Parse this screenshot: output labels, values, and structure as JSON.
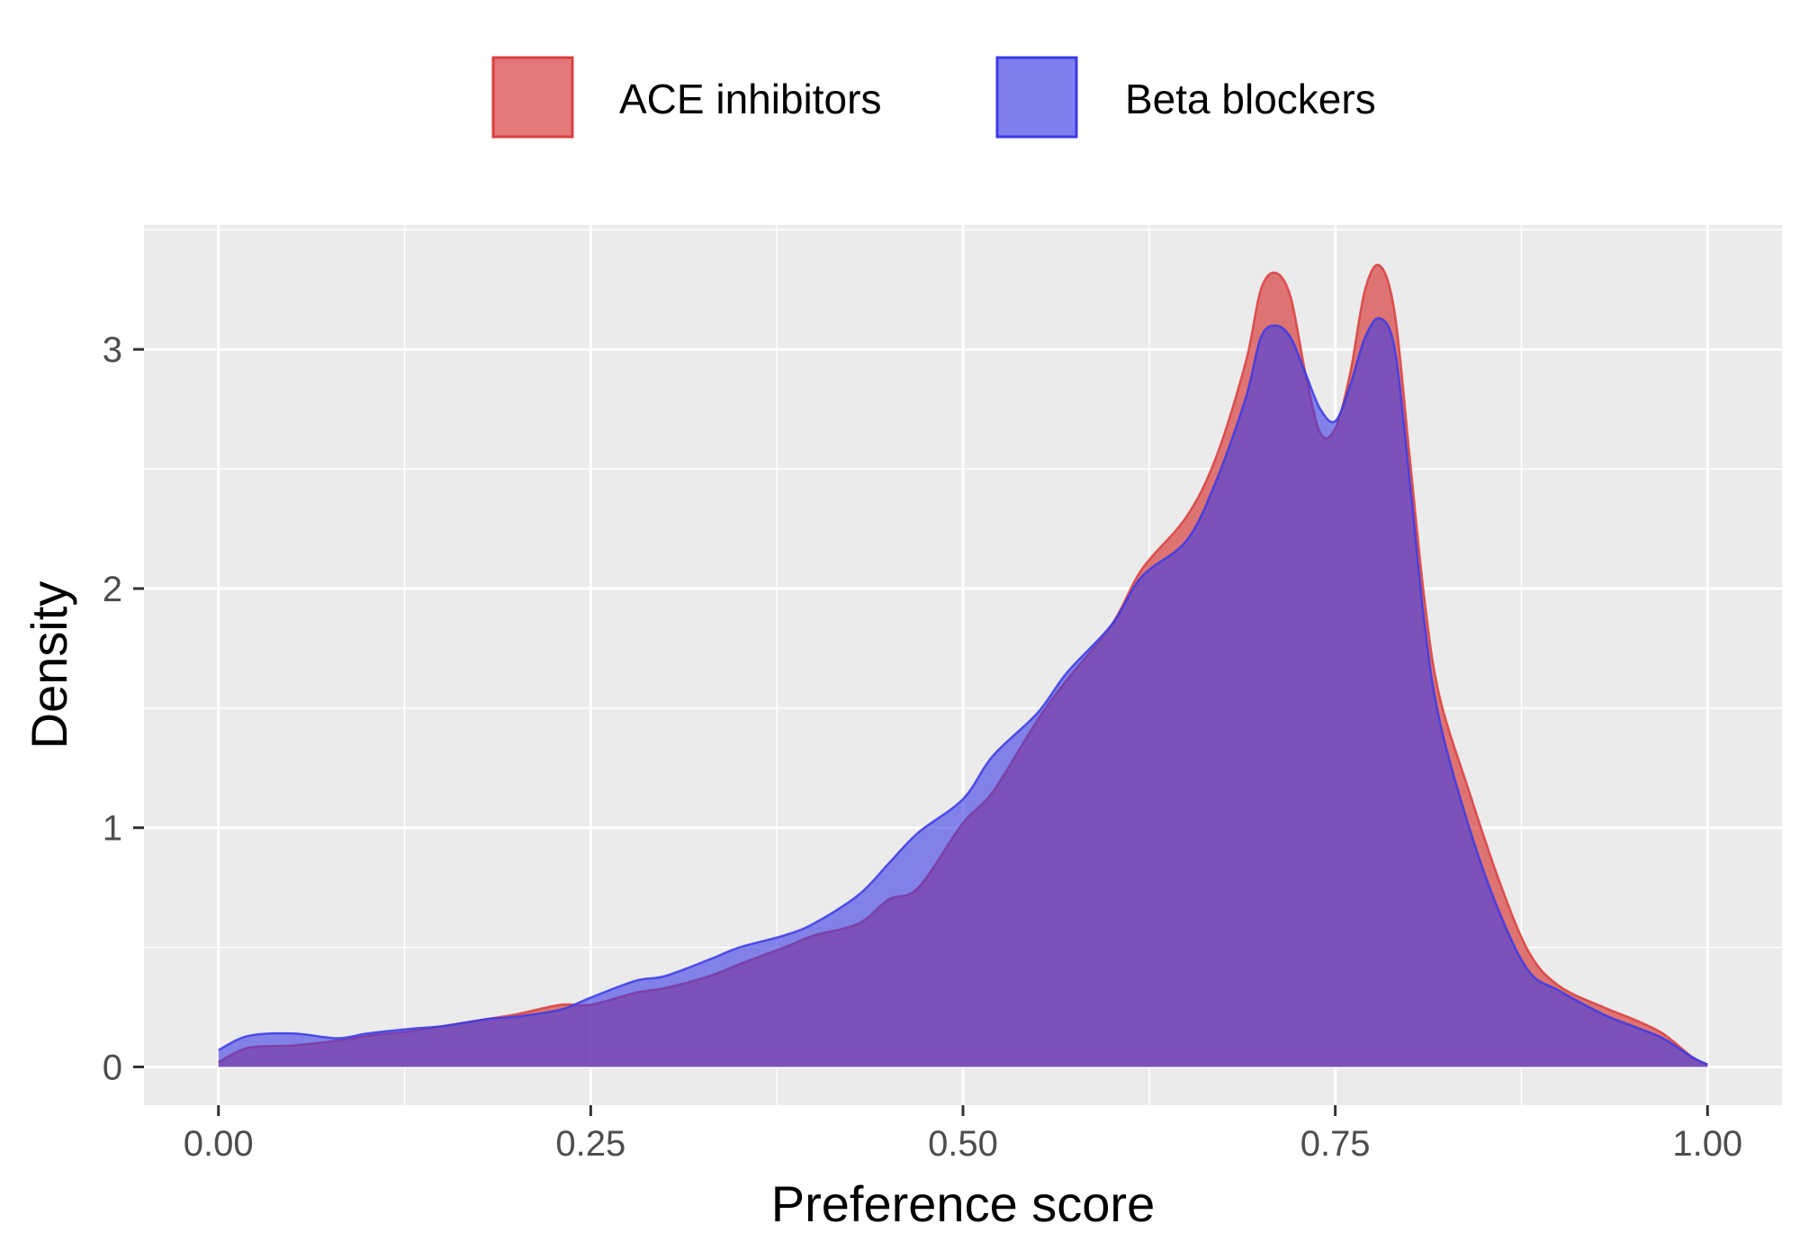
{
  "colors": {
    "ace": "#d94040",
    "beta": "#3b3be6",
    "panel": "#ebebeb",
    "grid": "#ffffff"
  },
  "chart_data": {
    "type": "area",
    "title": "",
    "xlabel": "Preference score",
    "ylabel": "Density",
    "xlim": [
      -0.05,
      1.05
    ],
    "ylim": [
      -0.16,
      3.52
    ],
    "grid": true,
    "legend_position": "top",
    "x_ticks": [
      0.0,
      0.25,
      0.5,
      0.75,
      1.0
    ],
    "x_tick_labels": [
      "0.00",
      "0.25",
      "0.50",
      "0.75",
      "1.00"
    ],
    "y_ticks": [
      0,
      1,
      2,
      3
    ],
    "y_tick_labels": [
      "0",
      "1",
      "2",
      "3"
    ],
    "series": [
      {
        "name": "ACE inhibitors",
        "color": "#d94040",
        "points": [
          [
            0.0,
            0.02
          ],
          [
            0.02,
            0.08
          ],
          [
            0.05,
            0.09
          ],
          [
            0.08,
            0.11
          ],
          [
            0.1,
            0.13
          ],
          [
            0.13,
            0.15
          ],
          [
            0.15,
            0.17
          ],
          [
            0.18,
            0.2
          ],
          [
            0.2,
            0.22
          ],
          [
            0.23,
            0.26
          ],
          [
            0.25,
            0.26
          ],
          [
            0.28,
            0.31
          ],
          [
            0.3,
            0.33
          ],
          [
            0.33,
            0.38
          ],
          [
            0.35,
            0.43
          ],
          [
            0.38,
            0.5
          ],
          [
            0.4,
            0.55
          ],
          [
            0.43,
            0.6
          ],
          [
            0.45,
            0.7
          ],
          [
            0.47,
            0.75
          ],
          [
            0.5,
            1.02
          ],
          [
            0.52,
            1.15
          ],
          [
            0.55,
            1.45
          ],
          [
            0.57,
            1.62
          ],
          [
            0.6,
            1.85
          ],
          [
            0.62,
            2.08
          ],
          [
            0.65,
            2.3
          ],
          [
            0.67,
            2.55
          ],
          [
            0.69,
            2.95
          ],
          [
            0.7,
            3.25
          ],
          [
            0.71,
            3.32
          ],
          [
            0.72,
            3.22
          ],
          [
            0.73,
            2.9
          ],
          [
            0.74,
            2.65
          ],
          [
            0.75,
            2.67
          ],
          [
            0.76,
            2.9
          ],
          [
            0.77,
            3.25
          ],
          [
            0.78,
            3.35
          ],
          [
            0.79,
            3.15
          ],
          [
            0.8,
            2.55
          ],
          [
            0.81,
            1.95
          ],
          [
            0.82,
            1.55
          ],
          [
            0.84,
            1.15
          ],
          [
            0.86,
            0.78
          ],
          [
            0.88,
            0.48
          ],
          [
            0.9,
            0.34
          ],
          [
            0.93,
            0.25
          ],
          [
            0.95,
            0.2
          ],
          [
            0.97,
            0.14
          ],
          [
            0.99,
            0.04
          ],
          [
            1.0,
            0.01
          ]
        ]
      },
      {
        "name": "Beta blockers",
        "color": "#3b3be6",
        "points": [
          [
            0.0,
            0.07
          ],
          [
            0.02,
            0.13
          ],
          [
            0.05,
            0.14
          ],
          [
            0.08,
            0.12
          ],
          [
            0.1,
            0.14
          ],
          [
            0.13,
            0.16
          ],
          [
            0.15,
            0.17
          ],
          [
            0.18,
            0.2
          ],
          [
            0.2,
            0.21
          ],
          [
            0.23,
            0.24
          ],
          [
            0.25,
            0.29
          ],
          [
            0.28,
            0.36
          ],
          [
            0.3,
            0.38
          ],
          [
            0.33,
            0.45
          ],
          [
            0.35,
            0.5
          ],
          [
            0.38,
            0.55
          ],
          [
            0.4,
            0.6
          ],
          [
            0.43,
            0.72
          ],
          [
            0.45,
            0.85
          ],
          [
            0.47,
            0.98
          ],
          [
            0.5,
            1.12
          ],
          [
            0.52,
            1.3
          ],
          [
            0.55,
            1.48
          ],
          [
            0.57,
            1.65
          ],
          [
            0.6,
            1.85
          ],
          [
            0.62,
            2.05
          ],
          [
            0.65,
            2.2
          ],
          [
            0.67,
            2.45
          ],
          [
            0.69,
            2.8
          ],
          [
            0.7,
            3.05
          ],
          [
            0.71,
            3.1
          ],
          [
            0.72,
            3.05
          ],
          [
            0.73,
            2.9
          ],
          [
            0.74,
            2.75
          ],
          [
            0.75,
            2.7
          ],
          [
            0.76,
            2.85
          ],
          [
            0.77,
            3.05
          ],
          [
            0.78,
            3.13
          ],
          [
            0.79,
            3.0
          ],
          [
            0.8,
            2.45
          ],
          [
            0.81,
            1.85
          ],
          [
            0.82,
            1.45
          ],
          [
            0.84,
            1.0
          ],
          [
            0.86,
            0.65
          ],
          [
            0.88,
            0.4
          ],
          [
            0.9,
            0.32
          ],
          [
            0.93,
            0.22
          ],
          [
            0.95,
            0.17
          ],
          [
            0.97,
            0.12
          ],
          [
            0.99,
            0.04
          ],
          [
            1.0,
            0.01
          ]
        ]
      }
    ]
  }
}
